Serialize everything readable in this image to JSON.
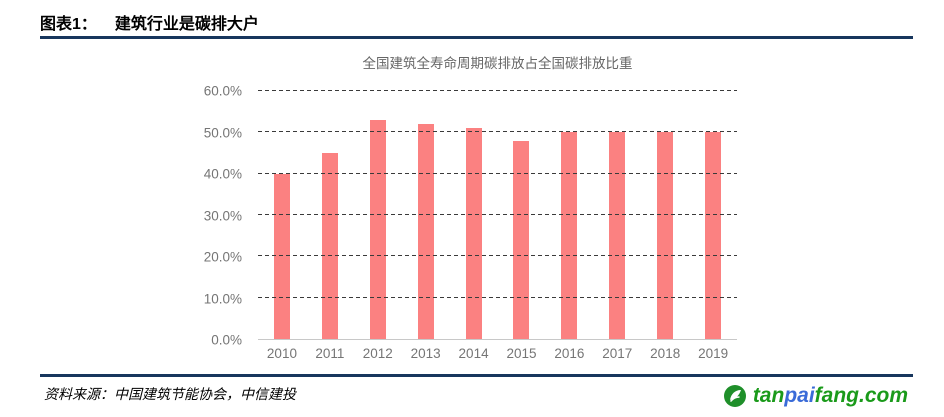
{
  "header": {
    "figure_label": "图表1：",
    "figure_title": "建筑行业是碳排大户"
  },
  "chart_data": {
    "type": "bar",
    "title": "全国建筑全寿命周期碳排放占全国碳排放比重",
    "categories": [
      "2010",
      "2011",
      "2012",
      "2013",
      "2014",
      "2015",
      "2016",
      "2017",
      "2018",
      "2019"
    ],
    "values": [
      40,
      45,
      53,
      52,
      51,
      48,
      50,
      50,
      50,
      50
    ],
    "unit": "%",
    "xlabel": "",
    "ylabel": "",
    "ylim": [
      0,
      60
    ],
    "y_ticks": [
      "0.0%",
      "10.0%",
      "20.0%",
      "30.0%",
      "40.0%",
      "50.0%",
      "60.0%"
    ],
    "grid": "horizontal-dashed",
    "legend": "none",
    "bar_color": "#FB8181"
  },
  "footer": {
    "source": "资料来源：中国建筑节能协会，中信建投"
  },
  "logo": {
    "site": "tanpaifang.com",
    "icon": "leaf-circle",
    "text_parts": [
      {
        "text": "tan",
        "color": "#1a9a1a"
      },
      {
        "text": "pai",
        "color": "#3a6bd8"
      },
      {
        "text": "fang.com",
        "color": "#1a9a1a"
      }
    ],
    "icon_color": "#1f8f2a"
  },
  "colors": {
    "rule": "#17365D",
    "bar": "#FB8181",
    "gridline": "#3a3a3a",
    "axis_text": "#757575",
    "chart_title_text": "#666666",
    "baseline": "#c8c8c8"
  }
}
